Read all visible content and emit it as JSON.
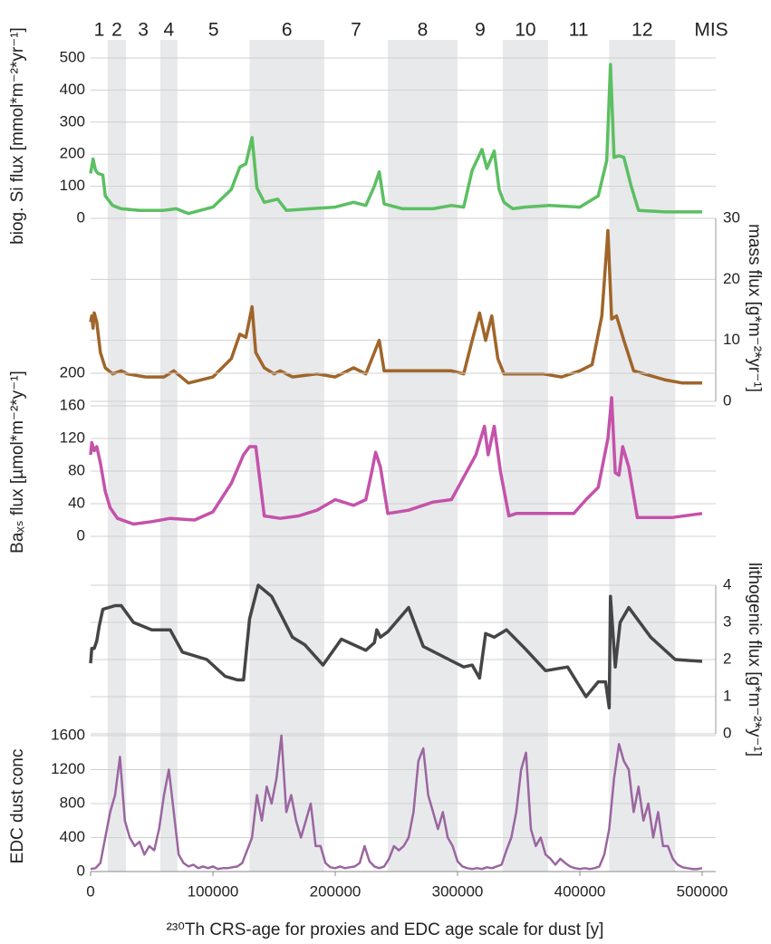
{
  "mis": {
    "label": "MIS",
    "stages": [
      {
        "label": "1",
        "start": 0,
        "end": 14000,
        "shaded": false
      },
      {
        "label": "2",
        "start": 14000,
        "end": 29000,
        "shaded": true
      },
      {
        "label": "3",
        "start": 29000,
        "end": 57000,
        "shaded": false
      },
      {
        "label": "4",
        "start": 57000,
        "end": 71000,
        "shaded": true
      },
      {
        "label": "5",
        "start": 71000,
        "end": 130000,
        "shaded": false
      },
      {
        "label": "6",
        "start": 130000,
        "end": 191000,
        "shaded": true
      },
      {
        "label": "7",
        "start": 191000,
        "end": 243000,
        "shaded": false
      },
      {
        "label": "8",
        "start": 243000,
        "end": 300000,
        "shaded": true
      },
      {
        "label": "9",
        "start": 300000,
        "end": 337000,
        "shaded": false
      },
      {
        "label": "10",
        "start": 337000,
        "end": 374000,
        "shaded": true
      },
      {
        "label": "11",
        "start": 374000,
        "end": 424000,
        "shaded": false
      },
      {
        "label": "12",
        "start": 424000,
        "end": 478000,
        "shaded": true
      }
    ]
  },
  "chart_data": [
    {
      "type": "line",
      "ylabel": "biog. Si flux [mmol*m⁻²*yr⁻¹]",
      "axis_side": "left",
      "color": "#5cbf62",
      "ylim": [
        0,
        500
      ],
      "yticks": [
        0,
        100,
        200,
        300,
        400,
        500
      ],
      "grid": true,
      "x": [
        0,
        2000,
        4000,
        6000,
        10000,
        12000,
        18000,
        25000,
        40000,
        60000,
        70000,
        80000,
        100000,
        115000,
        122000,
        127000,
        132000,
        136000,
        142000,
        153000,
        160000,
        180000,
        200000,
        215000,
        225000,
        232000,
        236000,
        240000,
        255000,
        280000,
        295000,
        305000,
        312000,
        320000,
        324000,
        330000,
        334000,
        338000,
        345000,
        355000,
        375000,
        400000,
        415000,
        422000,
        425000,
        428000,
        432000,
        436000,
        442000,
        448000,
        470000,
        500000
      ],
      "values": [
        140,
        185,
        150,
        140,
        135,
        70,
        40,
        30,
        25,
        25,
        30,
        15,
        35,
        90,
        160,
        170,
        252,
        95,
        50,
        60,
        25,
        30,
        35,
        50,
        40,
        100,
        145,
        45,
        30,
        30,
        40,
        35,
        150,
        215,
        155,
        210,
        90,
        50,
        30,
        35,
        40,
        35,
        70,
        180,
        480,
        190,
        195,
        190,
        100,
        25,
        20,
        20
      ]
    },
    {
      "type": "line",
      "ylabel": "mass flux [g*m⁻²*yr⁻¹]",
      "axis_side": "right",
      "color": "#a0652a",
      "ylim": [
        0,
        30
      ],
      "yticks": [
        0,
        10,
        20,
        30
      ],
      "grid": true,
      "x": [
        0,
        1000,
        2000,
        3000,
        5000,
        8000,
        12000,
        18000,
        25000,
        30000,
        45000,
        60000,
        68000,
        80000,
        100000,
        115000,
        122000,
        127000,
        132000,
        135000,
        142000,
        150000,
        155000,
        165000,
        185000,
        200000,
        215000,
        225000,
        232000,
        236000,
        240000,
        255000,
        295000,
        305000,
        312000,
        318000,
        323000,
        328000,
        333000,
        338000,
        370000,
        385000,
        400000,
        410000,
        418000,
        423000,
        426000,
        430000,
        436000,
        444000,
        470000,
        484000,
        500000
      ],
      "values": [
        13,
        14,
        12,
        14.5,
        13,
        8,
        5.5,
        4.5,
        5,
        4.5,
        4,
        4,
        5,
        3,
        4,
        7,
        11,
        10.5,
        15.5,
        8,
        5.5,
        4.5,
        5,
        4,
        4.5,
        4,
        5.5,
        4.5,
        8,
        10,
        5,
        5,
        5,
        4.5,
        10,
        14.5,
        10,
        14,
        7,
        4.5,
        4.5,
        4,
        5,
        6,
        14,
        28,
        13.5,
        14,
        10,
        5,
        3.5,
        3,
        3
      ]
    },
    {
      "type": "line",
      "ylabel": "Baₓₛ flux [µmol*m⁻²*y⁻¹]",
      "axis_side": "left",
      "color": "#c452aa",
      "ylim": [
        0,
        200
      ],
      "yticks": [
        0,
        40,
        80,
        120,
        160,
        200
      ],
      "grid": true,
      "x": [
        0,
        1000,
        3000,
        5000,
        8000,
        12000,
        16000,
        22000,
        35000,
        50000,
        65000,
        85000,
        100000,
        115000,
        125000,
        130000,
        135000,
        142000,
        155000,
        170000,
        185000,
        200000,
        215000,
        225000,
        230000,
        233000,
        237000,
        243000,
        260000,
        280000,
        295000,
        315000,
        322000,
        325000,
        330000,
        335000,
        342000,
        348000,
        380000,
        395000,
        405000,
        415000,
        423000,
        426000,
        429000,
        432000,
        435000,
        440000,
        447000,
        475000,
        500000
      ],
      "values": [
        100,
        115,
        105,
        110,
        90,
        55,
        35,
        22,
        15,
        18,
        22,
        20,
        30,
        65,
        100,
        110,
        110,
        25,
        22,
        25,
        32,
        45,
        38,
        45,
        80,
        103,
        85,
        28,
        32,
        42,
        45,
        100,
        135,
        100,
        135,
        80,
        25,
        28,
        28,
        28,
        45,
        60,
        120,
        170,
        78,
        75,
        110,
        85,
        23,
        23,
        28
      ]
    },
    {
      "type": "line",
      "ylabel": "lithogenic flux [g*m⁻²*y⁻¹]",
      "axis_side": "right",
      "color": "#454545",
      "ylim": [
        0,
        4
      ],
      "yticks": [
        0,
        1,
        2,
        3,
        4
      ],
      "grid": true,
      "x": [
        0,
        1000,
        3000,
        5000,
        7000,
        10000,
        20000,
        25000,
        35000,
        50000,
        65000,
        75000,
        95000,
        110000,
        120000,
        125000,
        130000,
        137000,
        148000,
        165000,
        175000,
        190000,
        205000,
        225000,
        232000,
        234000,
        237000,
        243000,
        260000,
        272000,
        293000,
        305000,
        312000,
        318000,
        323000,
        330000,
        340000,
        355000,
        372000,
        390000,
        405000,
        415000,
        421000,
        424000,
        425000,
        429000,
        433000,
        440000,
        458000,
        478000,
        500000
      ],
      "values": [
        1.9,
        2.3,
        2.3,
        2.5,
        2.9,
        3.35,
        3.45,
        3.45,
        3.0,
        2.8,
        2.8,
        2.2,
        2.0,
        1.55,
        1.45,
        1.45,
        3.1,
        4.0,
        3.7,
        2.6,
        2.4,
        1.85,
        2.55,
        2.25,
        2.45,
        2.8,
        2.6,
        2.75,
        3.4,
        2.35,
        2.0,
        1.8,
        1.85,
        1.5,
        2.7,
        2.6,
        2.8,
        2.3,
        1.7,
        1.8,
        1.0,
        1.4,
        1.4,
        0.7,
        3.7,
        1.8,
        3.0,
        3.4,
        2.6,
        2.0,
        1.95
      ]
    },
    {
      "type": "line",
      "ylabel": "EDC dust conc",
      "axis_side": "left",
      "color": "#9a66a0",
      "ylim": [
        0,
        1600
      ],
      "yticks": [
        0,
        400,
        800,
        1200,
        1600
      ],
      "grid": true,
      "xlim": [
        0,
        500000
      ],
      "xticks": [
        0,
        100000,
        200000,
        300000,
        400000,
        500000
      ],
      "xlabel": "²³⁰Th CRS-age for proxies and EDC age scale for dust [y]",
      "x": [
        0,
        4000,
        8000,
        12000,
        16000,
        20000,
        24000,
        28000,
        32000,
        36000,
        40000,
        44000,
        48000,
        52000,
        56000,
        60000,
        64000,
        68000,
        72000,
        76000,
        80000,
        84000,
        88000,
        92000,
        96000,
        100000,
        104000,
        108000,
        112000,
        116000,
        120000,
        124000,
        128000,
        132000,
        136000,
        140000,
        144000,
        148000,
        152000,
        156000,
        160000,
        164000,
        168000,
        172000,
        176000,
        180000,
        184000,
        188000,
        192000,
        196000,
        200000,
        204000,
        208000,
        212000,
        216000,
        220000,
        224000,
        228000,
        232000,
        236000,
        240000,
        244000,
        248000,
        252000,
        256000,
        260000,
        264000,
        268000,
        272000,
        276000,
        280000,
        284000,
        288000,
        292000,
        296000,
        300000,
        304000,
        308000,
        312000,
        316000,
        320000,
        324000,
        328000,
        332000,
        336000,
        340000,
        344000,
        348000,
        352000,
        356000,
        360000,
        364000,
        368000,
        372000,
        376000,
        380000,
        384000,
        388000,
        392000,
        396000,
        400000,
        404000,
        408000,
        412000,
        416000,
        420000,
        424000,
        428000,
        432000,
        436000,
        440000,
        444000,
        448000,
        452000,
        456000,
        460000,
        464000,
        468000,
        472000,
        476000,
        480000,
        484000,
        488000,
        492000,
        496000,
        500000
      ],
      "values": [
        30,
        40,
        100,
        400,
        700,
        900,
        1350,
        600,
        400,
        300,
        350,
        200,
        300,
        250,
        500,
        900,
        1200,
        700,
        200,
        100,
        60,
        80,
        40,
        60,
        40,
        60,
        30,
        40,
        40,
        50,
        60,
        100,
        250,
        400,
        900,
        600,
        1000,
        800,
        1100,
        1600,
        700,
        900,
        600,
        400,
        600,
        800,
        300,
        300,
        100,
        50,
        40,
        60,
        40,
        50,
        60,
        100,
        300,
        120,
        60,
        40,
        60,
        150,
        300,
        250,
        300,
        400,
        700,
        1300,
        1450,
        900,
        700,
        500,
        700,
        400,
        300,
        120,
        60,
        40,
        30,
        40,
        30,
        50,
        40,
        60,
        80,
        250,
        400,
        700,
        1200,
        1400,
        500,
        300,
        400,
        200,
        150,
        80,
        150,
        100,
        60,
        40,
        30,
        40,
        30,
        40,
        60,
        200,
        500,
        1100,
        1500,
        1300,
        1200,
        700,
        1000,
        600,
        800,
        400,
        700,
        300,
        300,
        150,
        80,
        50,
        40,
        30,
        30,
        40
      ]
    }
  ]
}
